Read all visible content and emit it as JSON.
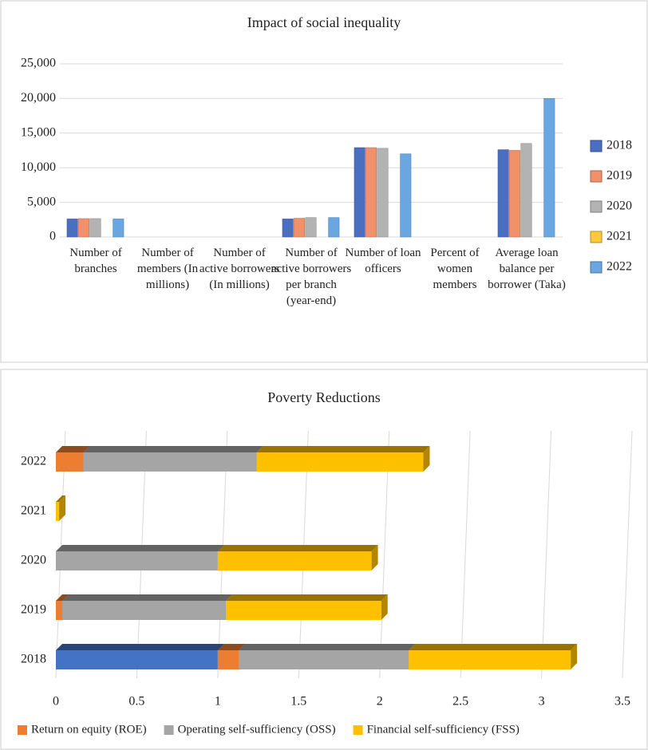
{
  "chart_data": [
    {
      "type": "bar",
      "title": "Impact of social inequality",
      "categories": [
        "Number of branches",
        "Number of members (In millions)",
        "Number of active borrowers (In millions)",
        "Number of active borrowers per branch (year-end)",
        "Number of loan officers",
        "Percent of women members",
        "Average loan balance per borrower (Taka)"
      ],
      "series": [
        {
          "name": "2018",
          "color": "#4a6fc0",
          "values": [
            2600,
            0,
            0,
            2600,
            12900,
            0,
            12600
          ]
        },
        {
          "name": "2019",
          "color": "#f0916a",
          "values": [
            2650,
            0,
            0,
            2700,
            12900,
            0,
            12500
          ]
        },
        {
          "name": "2020",
          "color": "#b3b3b3",
          "values": [
            2650,
            0,
            0,
            2800,
            12800,
            0,
            13500
          ]
        },
        {
          "name": "2021",
          "color": "#fbc93a",
          "values": [
            0,
            0,
            0,
            0,
            0,
            0,
            0
          ]
        },
        {
          "name": "2022",
          "color": "#6aa6e0",
          "values": [
            2600,
            0,
            0,
            2800,
            12000,
            0,
            20000
          ]
        }
      ],
      "ylim": [
        0,
        25000
      ],
      "yticks": [
        0,
        {
          "value": 5000,
          "label": "5,000"
        },
        {
          "value": 10000,
          "label": "10,000"
        },
        {
          "value": 15000,
          "label": "15,000"
        },
        {
          "value": 20000,
          "label": "20,000"
        },
        {
          "value": 25000,
          "label": "25,000"
        }
      ],
      "grid": true,
      "legend": "right"
    },
    {
      "type": "hbar",
      "title": "Poverty Reductions",
      "stacked": true,
      "categories": [
        "2022",
        "2021",
        "2020",
        "2019",
        "2018"
      ],
      "series": [
        {
          "color": "#4472c4",
          "values": [
            0,
            0,
            0,
            0,
            1
          ]
        },
        {
          "name": "Return on equity (ROE)",
          "color": "#ed7d31",
          "values": [
            0.17,
            0,
            0,
            0.04,
            0.13
          ]
        },
        {
          "name": "Operating self-sufficiency (OSS)",
          "color": "#a5a5a5",
          "values": [
            1.07,
            0,
            1.0,
            1.01,
            1.05
          ]
        },
        {
          "name": "Financial self-sufficiency (FSS)",
          "color": "#ffc000",
          "values": [
            1.03,
            0.02,
            0.95,
            0.96,
            1.0
          ]
        }
      ],
      "xlim": [
        0,
        3.5
      ],
      "xticks": [
        0,
        0.5,
        1,
        1.5,
        2,
        2.5,
        3,
        3.5
      ],
      "grid": true,
      "legend": "bottom"
    }
  ]
}
